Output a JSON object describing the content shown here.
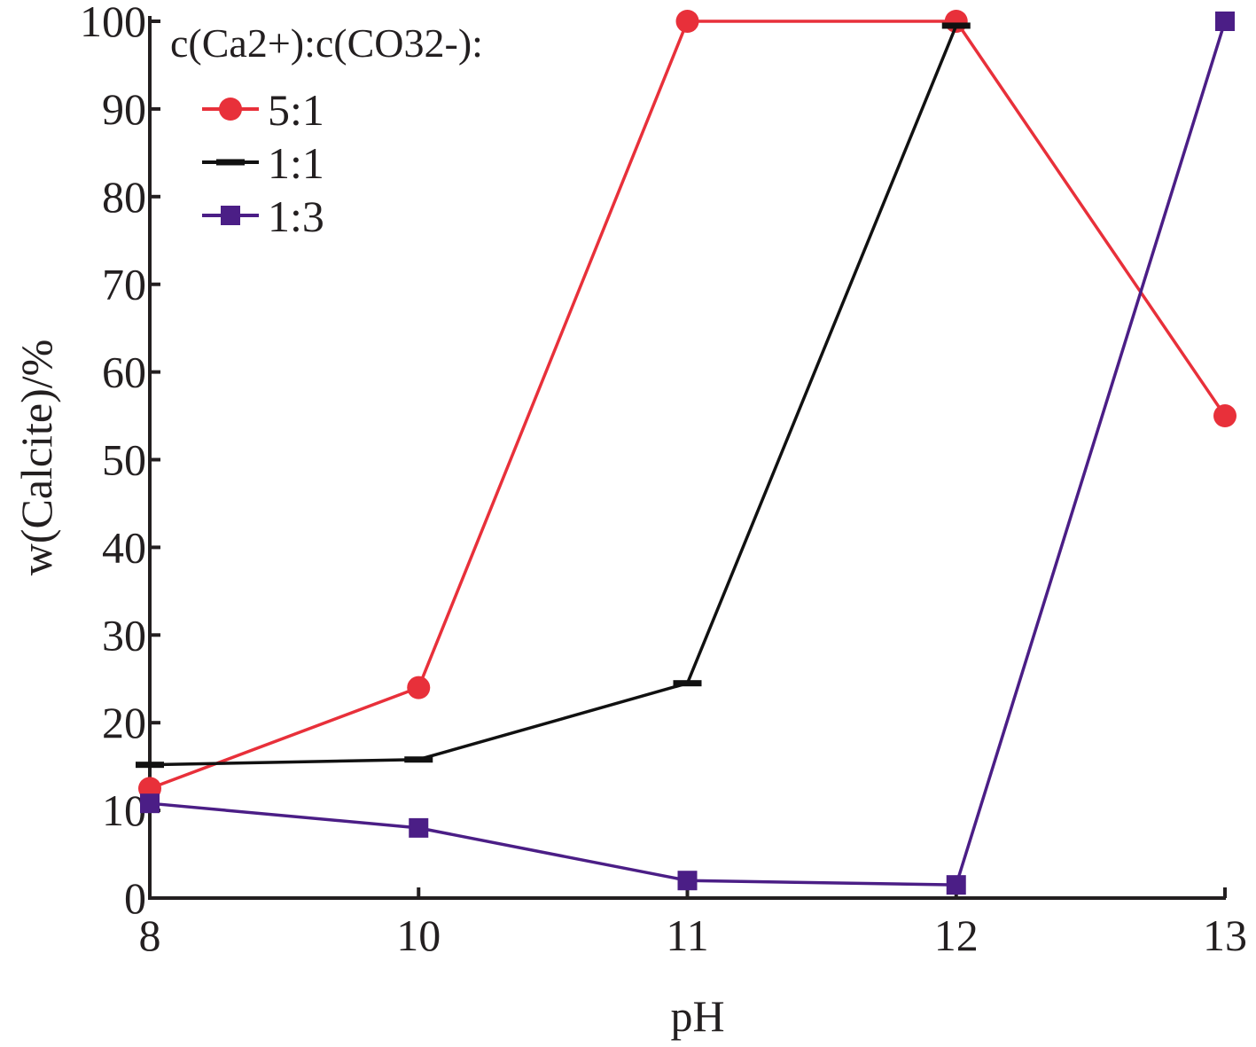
{
  "chart_data": {
    "type": "line",
    "categories": [
      "8",
      "10",
      "11",
      "12",
      "13"
    ],
    "xlabel": "pH",
    "ylabel": "w(Calcite)/%",
    "ylim": [
      0,
      100
    ],
    "yticks": [
      "0",
      "10",
      "20",
      "30",
      "40",
      "50",
      "60",
      "70",
      "80",
      "90",
      "100"
    ],
    "legend_title": "c(Ca2+):c(CO32-):",
    "legend_position": "top-left",
    "grid": false,
    "series": [
      {
        "name": "5:1",
        "color": "#e8303a",
        "marker": "circle",
        "values": [
          12.5,
          24,
          100,
          100,
          55
        ]
      },
      {
        "name": "1:1",
        "color": "#111111",
        "marker": "dash",
        "values": [
          15.2,
          15.8,
          24.5,
          99.5,
          null
        ]
      },
      {
        "name": "1:3",
        "color": "#4b1e86",
        "marker": "square",
        "values": [
          10.8,
          8,
          2,
          1.5,
          100
        ]
      }
    ]
  }
}
